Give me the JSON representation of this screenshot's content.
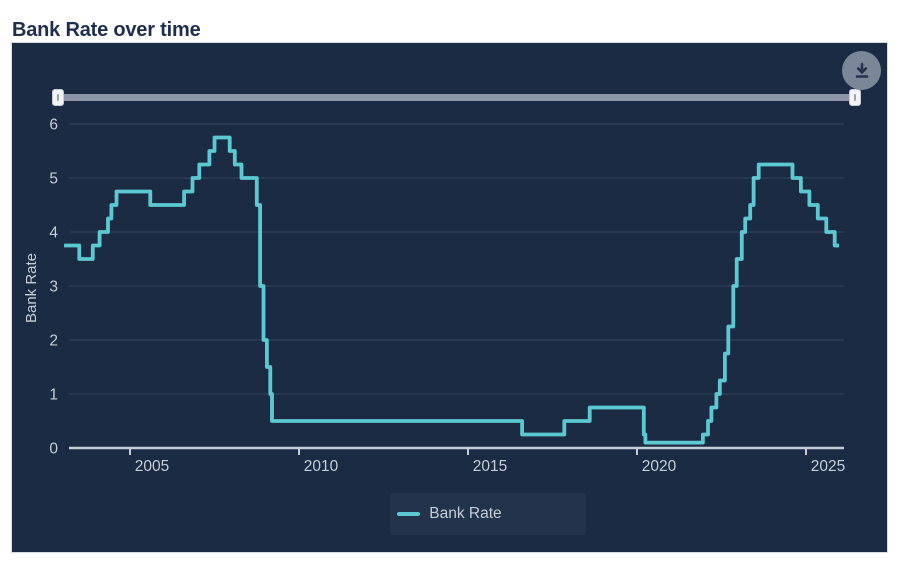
{
  "page": {
    "title": "Bank Rate over time"
  },
  "colors": {
    "page_bg": "#ffffff",
    "title_text": "#1e2e4e",
    "panel_bg": "#1b2b44",
    "panel_border": "#d3dce1",
    "grid": "#2f4158",
    "axis": "#c6cfd8",
    "tick_text": "#c6cfd8",
    "line": "#5cc9d2",
    "slider_track": "#8b95a5",
    "slider_handle": "#f2f3f4",
    "download_button_bg": "#7a8798",
    "download_icon": "#22334d"
  },
  "icons": {
    "download": "download-arrow (↓ with underline)"
  },
  "controls": {
    "range_slider": {
      "start_fraction": 0,
      "end_fraction": 1
    }
  },
  "chart_data": {
    "type": "line",
    "step": true,
    "title": "Bank Rate over time",
    "xlabel": "",
    "ylabel": "Bank Rate",
    "xlim": [
      2003,
      2026
    ],
    "ylim": [
      0,
      6
    ],
    "x_ticks": [
      2005,
      2010,
      2015,
      2020,
      2025
    ],
    "y_ticks": [
      0,
      1,
      2,
      3,
      4,
      5,
      6
    ],
    "grid": "horizontal",
    "legend_position": "bottom-center",
    "series": [
      {
        "name": "Bank Rate",
        "color": "#5cc9d2",
        "start_x": 2003.05,
        "end_x": 2025.98,
        "step_points": [
          [
            2003.05,
            3.75
          ],
          [
            2003.5,
            3.5
          ],
          [
            2003.9,
            3.75
          ],
          [
            2004.1,
            4.0
          ],
          [
            2004.35,
            4.25
          ],
          [
            2004.45,
            4.5
          ],
          [
            2004.6,
            4.75
          ],
          [
            2005.6,
            4.5
          ],
          [
            2006.6,
            4.75
          ],
          [
            2006.85,
            5.0
          ],
          [
            2007.05,
            5.25
          ],
          [
            2007.35,
            5.5
          ],
          [
            2007.5,
            5.75
          ],
          [
            2007.95,
            5.5
          ],
          [
            2008.1,
            5.25
          ],
          [
            2008.3,
            5.0
          ],
          [
            2008.75,
            4.5
          ],
          [
            2008.85,
            3.0
          ],
          [
            2008.95,
            2.0
          ],
          [
            2009.05,
            1.5
          ],
          [
            2009.15,
            1.0
          ],
          [
            2009.2,
            0.5
          ],
          [
            2016.6,
            0.25
          ],
          [
            2017.85,
            0.5
          ],
          [
            2018.6,
            0.75
          ],
          [
            2020.2,
            0.25
          ],
          [
            2020.25,
            0.1
          ],
          [
            2021.95,
            0.25
          ],
          [
            2022.1,
            0.5
          ],
          [
            2022.2,
            0.75
          ],
          [
            2022.35,
            1.0
          ],
          [
            2022.45,
            1.25
          ],
          [
            2022.6,
            1.75
          ],
          [
            2022.7,
            2.25
          ],
          [
            2022.85,
            3.0
          ],
          [
            2022.95,
            3.5
          ],
          [
            2023.1,
            4.0
          ],
          [
            2023.2,
            4.25
          ],
          [
            2023.35,
            4.5
          ],
          [
            2023.45,
            5.0
          ],
          [
            2023.6,
            5.25
          ],
          [
            2024.6,
            5.0
          ],
          [
            2024.85,
            4.75
          ],
          [
            2025.1,
            4.5
          ],
          [
            2025.35,
            4.25
          ],
          [
            2025.6,
            4.0
          ],
          [
            2025.85,
            3.75
          ]
        ]
      }
    ]
  }
}
